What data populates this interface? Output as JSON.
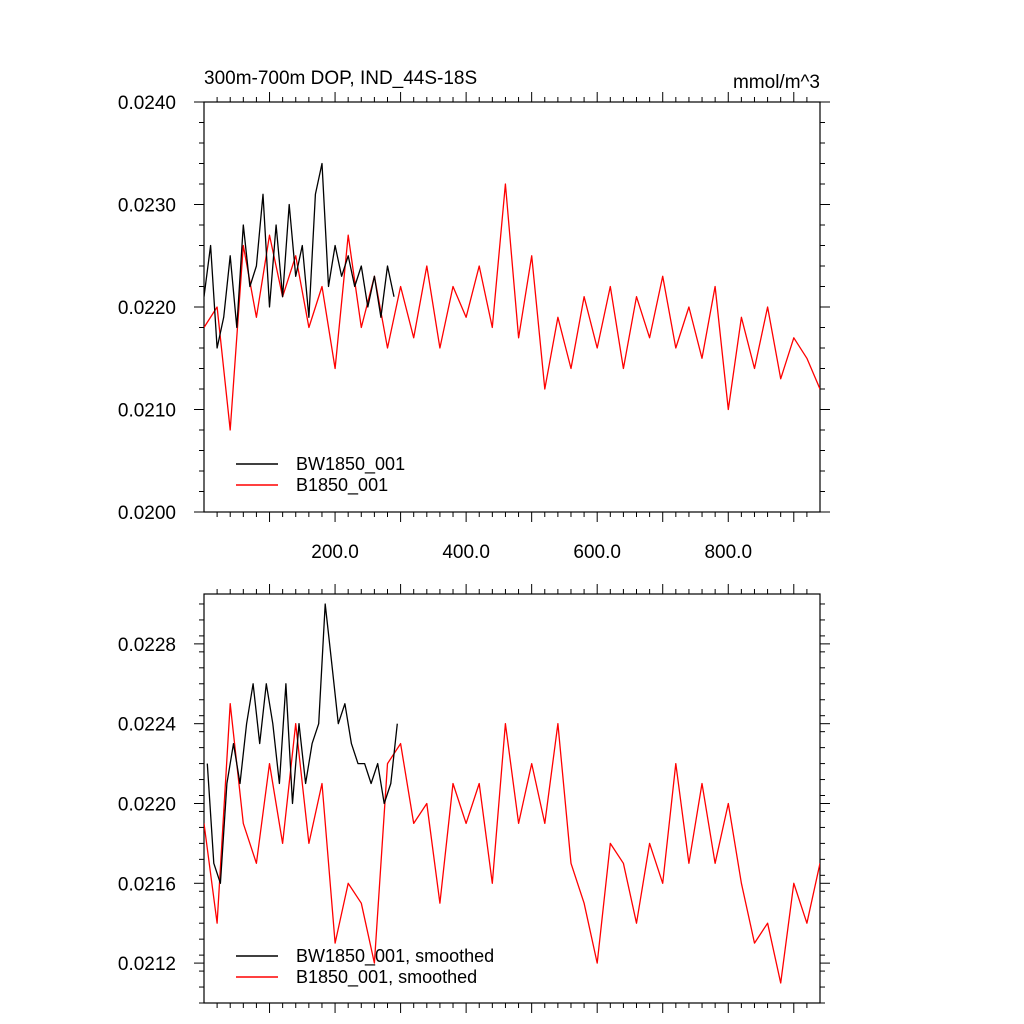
{
  "chart_data": [
    {
      "type": "line",
      "title": "300m-700m DOP, IND_44S-18S",
      "units": "mmol/m^3",
      "xlim": [
        0,
        940
      ],
      "ylim": [
        0.02,
        0.024
      ],
      "xticks": [
        200,
        400,
        600,
        800
      ],
      "xtick_labels": [
        "200.0",
        "400.0",
        "600.0",
        "800.0"
      ],
      "yticks": [
        0.02,
        0.021,
        0.022,
        0.023,
        0.024
      ],
      "ytick_labels": [
        "0.0200",
        "0.0210",
        "0.0220",
        "0.0230",
        "0.0240"
      ],
      "legend_placement": "lower-left",
      "series": [
        {
          "name": "BW1850_001",
          "color": "#000000",
          "x": [
            0,
            10,
            20,
            30,
            40,
            50,
            60,
            70,
            80,
            90,
            100,
            110,
            120,
            130,
            140,
            150,
            160,
            170,
            180,
            190,
            200,
            210,
            220,
            230,
            240,
            250,
            260,
            270,
            280,
            290
          ],
          "y": [
            0.0221,
            0.0226,
            0.0216,
            0.0219,
            0.0225,
            0.0218,
            0.0228,
            0.0222,
            0.0224,
            0.0231,
            0.022,
            0.0228,
            0.0221,
            0.023,
            0.0223,
            0.0226,
            0.0219,
            0.0231,
            0.0234,
            0.0222,
            0.0226,
            0.0223,
            0.0225,
            0.0222,
            0.0224,
            0.022,
            0.0223,
            0.0219,
            0.0224,
            0.0221
          ]
        },
        {
          "name": "B1850_001",
          "color": "#ff0000",
          "x": [
            0,
            20,
            40,
            60,
            80,
            100,
            120,
            140,
            160,
            180,
            200,
            220,
            240,
            260,
            280,
            300,
            320,
            340,
            360,
            380,
            400,
            420,
            440,
            460,
            480,
            500,
            520,
            540,
            560,
            580,
            600,
            620,
            640,
            660,
            680,
            700,
            720,
            740,
            760,
            780,
            800,
            820,
            840,
            860,
            880,
            900,
            920,
            940
          ],
          "y": [
            0.0218,
            0.022,
            0.0208,
            0.0226,
            0.0219,
            0.0227,
            0.0221,
            0.0225,
            0.0218,
            0.0222,
            0.0214,
            0.0227,
            0.0218,
            0.0223,
            0.0216,
            0.0222,
            0.0217,
            0.0224,
            0.0216,
            0.0222,
            0.0219,
            0.0224,
            0.0218,
            0.0232,
            0.0217,
            0.0225,
            0.0212,
            0.0219,
            0.0214,
            0.0221,
            0.0216,
            0.0222,
            0.0214,
            0.0221,
            0.0217,
            0.0223,
            0.0216,
            0.022,
            0.0215,
            0.0222,
            0.021,
            0.0219,
            0.0214,
            0.022,
            0.0213,
            0.0217,
            0.0215,
            0.0212
          ]
        }
      ]
    },
    {
      "type": "line",
      "title": "",
      "xlim": [
        0,
        940
      ],
      "ylim": [
        0.021,
        0.02305
      ],
      "yticks": [
        0.0212,
        0.0216,
        0.022,
        0.0224,
        0.0228
      ],
      "ytick_labels": [
        "0.0212",
        "0.0216",
        "0.0220",
        "0.0224",
        "0.0228"
      ],
      "legend_placement": "lower-left",
      "series": [
        {
          "name": "BW1850_001, smoothed",
          "color": "#000000",
          "x": [
            5,
            15,
            25,
            35,
            45,
            55,
            65,
            75,
            85,
            95,
            105,
            115,
            125,
            135,
            145,
            155,
            165,
            175,
            185,
            195,
            205,
            215,
            225,
            235,
            245,
            255,
            265,
            275,
            285,
            295
          ],
          "y": [
            0.0222,
            0.0217,
            0.0216,
            0.0221,
            0.0223,
            0.0221,
            0.0224,
            0.0226,
            0.0223,
            0.0226,
            0.0224,
            0.0221,
            0.0226,
            0.022,
            0.0224,
            0.0221,
            0.0223,
            0.0224,
            0.023,
            0.0227,
            0.0224,
            0.0225,
            0.0223,
            0.0222,
            0.0222,
            0.0221,
            0.0222,
            0.022,
            0.0221,
            0.0224
          ]
        },
        {
          "name": "B1850_001, smoothed",
          "color": "#ff0000",
          "x": [
            0,
            20,
            40,
            60,
            80,
            100,
            120,
            140,
            160,
            180,
            200,
            220,
            240,
            260,
            280,
            300,
            320,
            340,
            360,
            380,
            400,
            420,
            440,
            460,
            480,
            500,
            520,
            540,
            560,
            580,
            600,
            620,
            640,
            660,
            680,
            700,
            720,
            740,
            760,
            780,
            800,
            820,
            840,
            860,
            880,
            900,
            920,
            940
          ],
          "y": [
            0.0219,
            0.0214,
            0.0225,
            0.0219,
            0.0217,
            0.0222,
            0.0218,
            0.0224,
            0.0218,
            0.0221,
            0.0213,
            0.0216,
            0.0215,
            0.0212,
            0.0222,
            0.0223,
            0.0219,
            0.022,
            0.0215,
            0.0221,
            0.0219,
            0.0221,
            0.0216,
            0.0224,
            0.0219,
            0.0222,
            0.0219,
            0.0224,
            0.0217,
            0.0215,
            0.0212,
            0.0218,
            0.0217,
            0.0214,
            0.0218,
            0.0216,
            0.0222,
            0.0217,
            0.0221,
            0.0217,
            0.022,
            0.0216,
            0.0213,
            0.0214,
            0.0211,
            0.0216,
            0.0214,
            0.0217
          ]
        }
      ]
    }
  ]
}
